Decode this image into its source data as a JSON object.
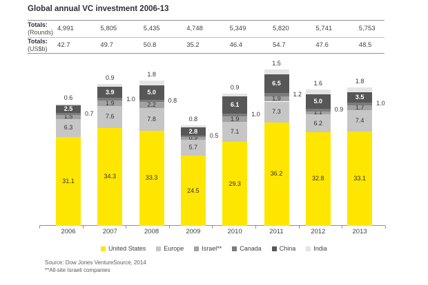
{
  "title": "Global annual VC investment 2006-13",
  "totals_table": {
    "rows": [
      {
        "label_line1": "Totals:",
        "label_line2": "(Rounds)",
        "values": [
          "4,991",
          "5,805",
          "5,435",
          "4,748",
          "5,349",
          "5,820",
          "5,741",
          "5,753"
        ]
      },
      {
        "label_line1": "Totals:",
        "label_line2": "(US$b)",
        "values": [
          "42.7",
          "49.7",
          "50.8",
          "35.2",
          "46.4",
          "54.7",
          "47.6",
          "48.5"
        ]
      }
    ]
  },
  "chart_data": {
    "type": "bar",
    "stacked": true,
    "title": "Global annual VC investment 2006-13",
    "unit": "US$b",
    "categories": [
      "2006",
      "2007",
      "2008",
      "2009",
      "2010",
      "2011",
      "2012",
      "2013"
    ],
    "series": [
      {
        "name": "United States",
        "color": "#FFE600",
        "label_placement": "inside",
        "label_color": "#333333",
        "values": [
          31.1,
          34.3,
          33.3,
          24.5,
          29.3,
          36.2,
          32.8,
          33.1
        ]
      },
      {
        "name": "Europe",
        "color": "#C6C6C6",
        "label_placement": "inside",
        "label_color": "#333333",
        "values": [
          6.3,
          7.6,
          7.8,
          5.7,
          7.1,
          7.3,
          6.2,
          7.4
        ]
      },
      {
        "name": "Israel**",
        "color": "#A2A2A2",
        "label_placement": "inside",
        "label_color": "#333333",
        "values": [
          1.5,
          1.9,
          2.2,
          0.9,
          1.9,
          1.9,
          1.1,
          1.7
        ]
      },
      {
        "name": "Canada",
        "color": "#7B7B7B",
        "label_placement": "right",
        "label_color": "#333333",
        "values": [
          0.7,
          1.0,
          0.8,
          0.5,
          1.0,
          1.2,
          0.9,
          1.0
        ]
      },
      {
        "name": "China",
        "color": "#575757",
        "label_placement": "inside",
        "label_color": "#ffffff",
        "values": [
          2.5,
          3.9,
          5.0,
          2.8,
          6.1,
          6.5,
          5.0,
          3.5
        ]
      },
      {
        "name": "India",
        "color": "#E4E4E4",
        "label_placement": "above",
        "label_color": "#333333",
        "values": [
          0.6,
          0.9,
          1.8,
          0.8,
          0.9,
          1.5,
          1.6,
          1.8
        ]
      }
    ],
    "totals_by_year_usd_b": [
      42.7,
      49.7,
      50.8,
      35.2,
      46.4,
      54.7,
      47.6,
      48.5
    ],
    "ylim": [
      0,
      57
    ],
    "grid": false,
    "legend_position": "bottom"
  },
  "footer": {
    "source": "Source: Dow Jones VentureSource, 2014",
    "note": "**All-site Israeli companies"
  }
}
